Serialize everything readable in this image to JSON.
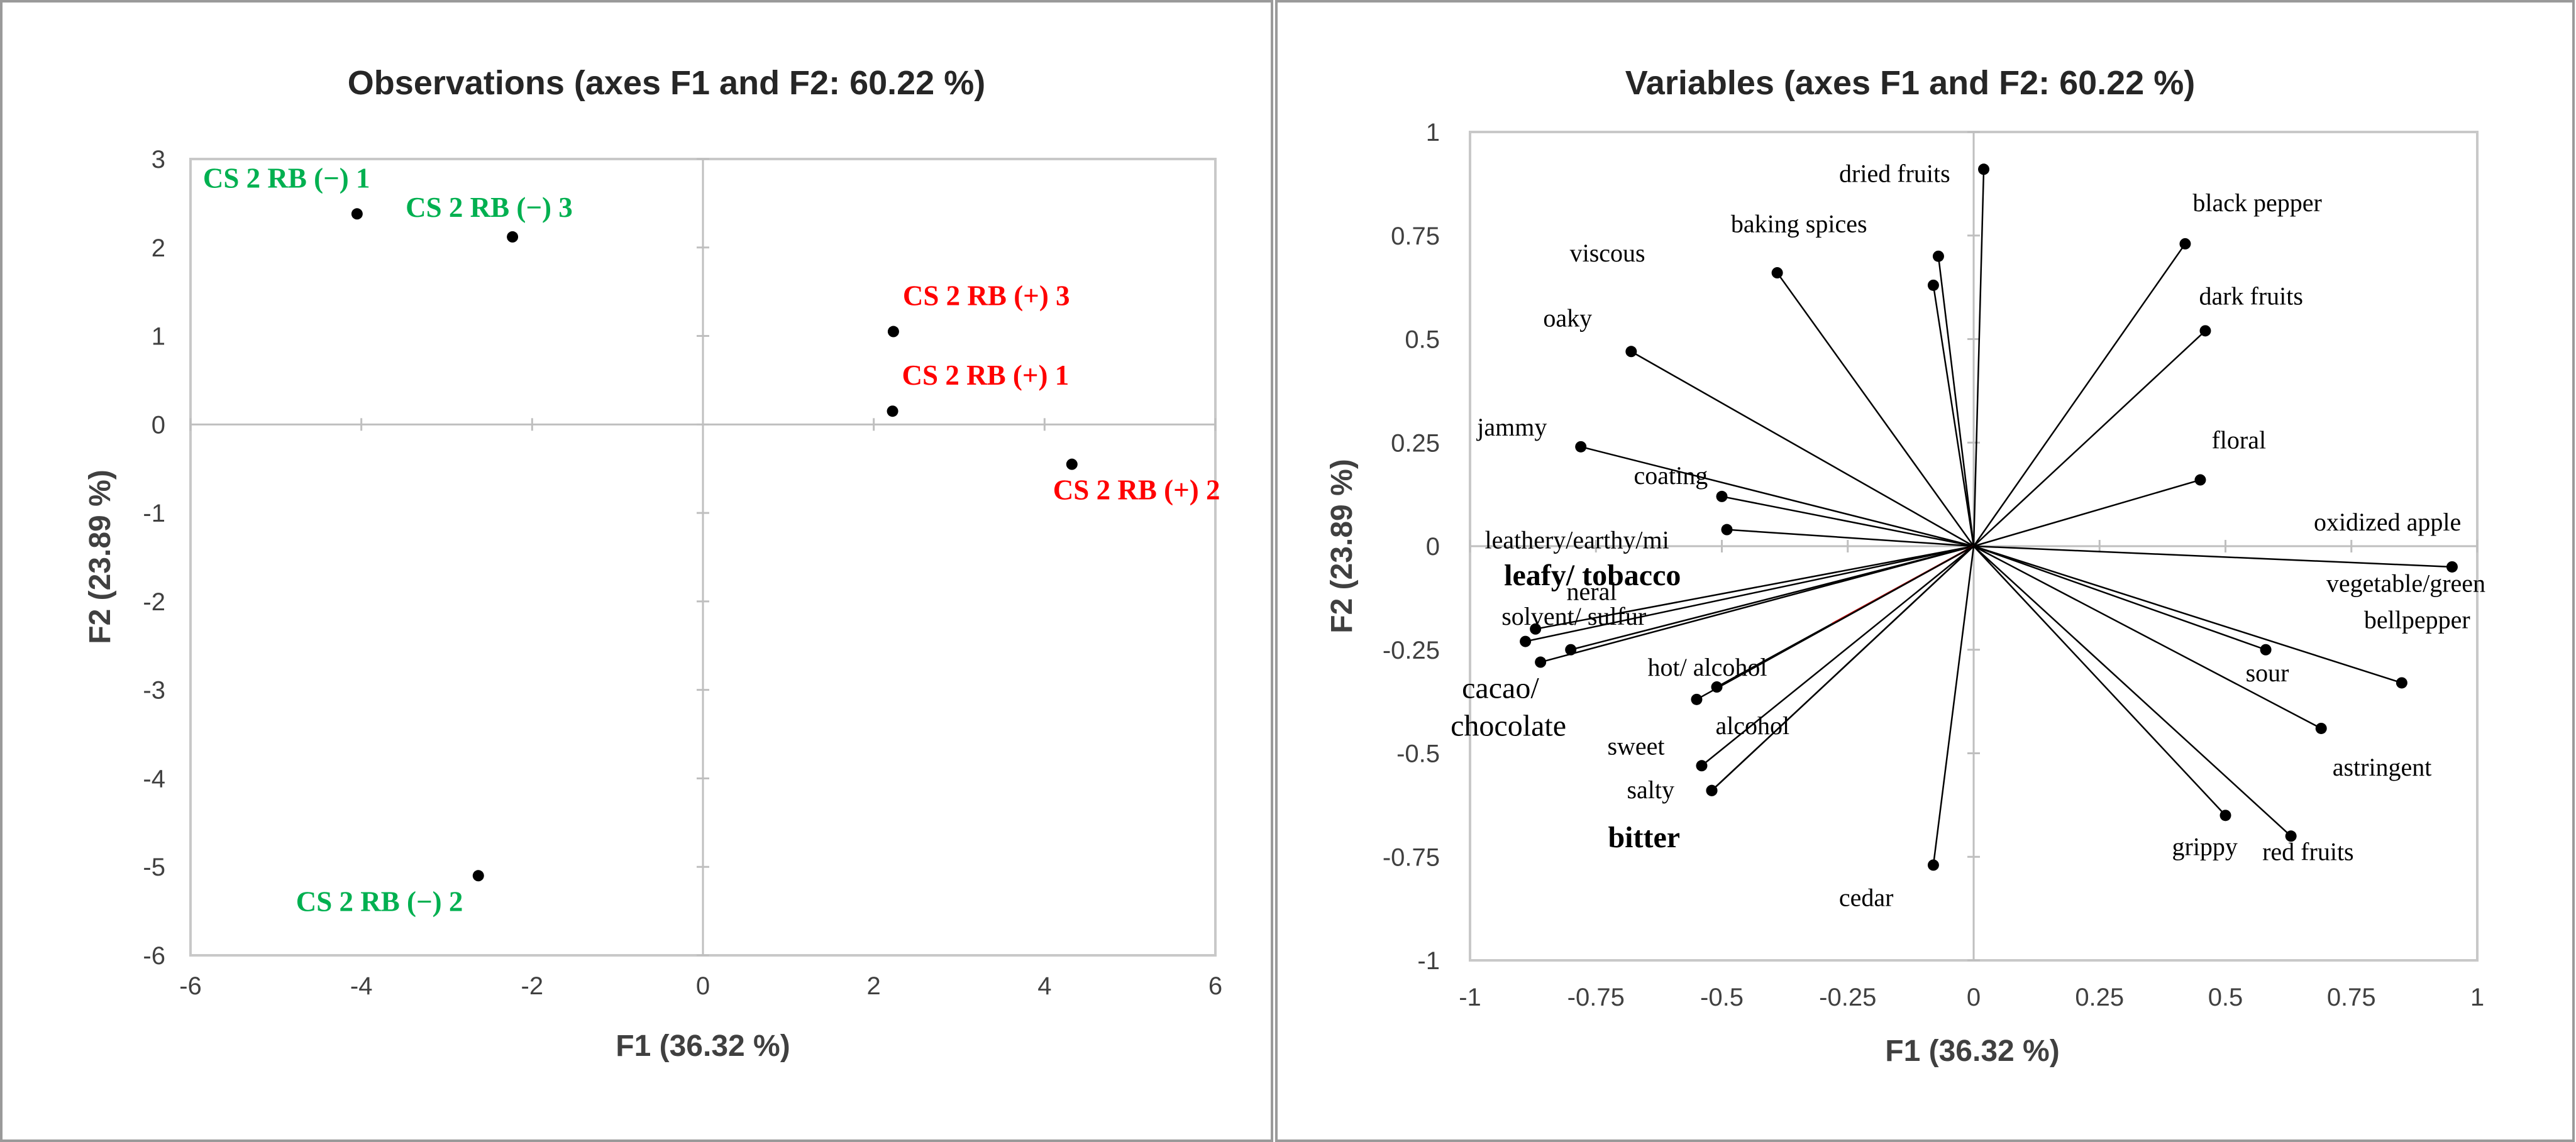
{
  "chart_data": [
    {
      "type": "scatter",
      "title": "Observations (axes F1 and F2: 60.22 %)",
      "xlabel": "F1 (36.32 %)",
      "ylabel": "F2 (23.89 %)",
      "xlim": [
        -6,
        6
      ],
      "ylim": [
        -6,
        3
      ],
      "xticks": [
        -6,
        -4,
        -2,
        0,
        2,
        4,
        6
      ],
      "yticks": [
        -6,
        -5,
        -4,
        -3,
        -2,
        -1,
        0,
        1,
        2,
        3
      ],
      "points": [
        {
          "label": "CS 2 RB (−) 1",
          "x": -4.05,
          "y": 2.38,
          "color": "#00b050"
        },
        {
          "label": "CS 2 RB (−) 3",
          "x": -2.23,
          "y": 2.12,
          "color": "#00b050"
        },
        {
          "label": "CS 2 RB (+) 3",
          "x": 2.23,
          "y": 1.05,
          "color": "#ff0000"
        },
        {
          "label": "CS 2 RB (+) 1",
          "x": 2.22,
          "y": 0.15,
          "color": "#ff0000"
        },
        {
          "label": "CS 2 RB (+) 2",
          "x": 4.32,
          "y": -0.45,
          "color": "#ff0000"
        },
        {
          "label": "CS 2 RB (−) 2",
          "x": -2.63,
          "y": -5.1,
          "color": "#00b050"
        }
      ]
    },
    {
      "type": "scatter",
      "subtype": "biplot-variables",
      "title": "Variables (axes F1 and F2: 60.22 %)",
      "xlabel": "F1 (36.32 %)",
      "ylabel": "F2 (23.89 %)",
      "xlim": [
        -1,
        1
      ],
      "ylim": [
        -1,
        1
      ],
      "xticks": [
        -1,
        -0.75,
        -0.5,
        -0.25,
        0,
        0.25,
        0.5,
        0.75,
        1
      ],
      "yticks": [
        -1,
        -0.75,
        -0.5,
        -0.25,
        0,
        0.25,
        0.5,
        0.75,
        1
      ],
      "vectors": [
        {
          "label": "dried fruits",
          "x": 0.02,
          "y": 0.91
        },
        {
          "label": "baking spices",
          "x": -0.07,
          "y": 0.7
        },
        {
          "label": "",
          "x": -0.08,
          "y": 0.63
        },
        {
          "label": "viscous",
          "x": -0.39,
          "y": 0.66
        },
        {
          "label": "black pepper",
          "x": 0.42,
          "y": 0.73
        },
        {
          "label": "dark fruits",
          "x": 0.46,
          "y": 0.52
        },
        {
          "label": "oaky",
          "x": -0.68,
          "y": 0.47
        },
        {
          "label": "jammy",
          "x": -0.78,
          "y": 0.24
        },
        {
          "label": "coating",
          "x": -0.5,
          "y": 0.12
        },
        {
          "label": "leathery/earthy/mi neral",
          "x": -0.49,
          "y": 0.04
        },
        {
          "label": "floral",
          "x": 0.45,
          "y": 0.16
        },
        {
          "label": "oxidized apple",
          "x": 0.95,
          "y": -0.05
        },
        {
          "label": "leafy/ tobacco",
          "x": -0.87,
          "y": -0.2
        },
        {
          "label": "solvent/ sulfur",
          "x": -0.8,
          "y": -0.25
        },
        {
          "label": "",
          "x": -0.89,
          "y": -0.23
        },
        {
          "label": "cacao/ chocolate",
          "x": -0.86,
          "y": -0.28
        },
        {
          "label": "hot/ alcohol",
          "x": -0.51,
          "y": -0.34
        },
        {
          "label": "alcohol",
          "x": -0.55,
          "y": -0.37
        },
        {
          "label": "sweet",
          "x": -0.54,
          "y": -0.53
        },
        {
          "label": "salty",
          "x": -0.52,
          "y": -0.59
        },
        {
          "label": "bitter",
          "x": -0.52,
          "y": -0.59
        },
        {
          "label": "vegetable/green bellpepper",
          "x": 0.85,
          "y": -0.33
        },
        {
          "label": "sour",
          "x": 0.58,
          "y": -0.25
        },
        {
          "label": "astringent",
          "x": 0.69,
          "y": -0.44
        },
        {
          "label": "grippy",
          "x": 0.5,
          "y": -0.65
        },
        {
          "label": "red fruits",
          "x": 0.63,
          "y": -0.7
        },
        {
          "label": "cedar",
          "x": -0.08,
          "y": -0.77
        }
      ]
    }
  ]
}
